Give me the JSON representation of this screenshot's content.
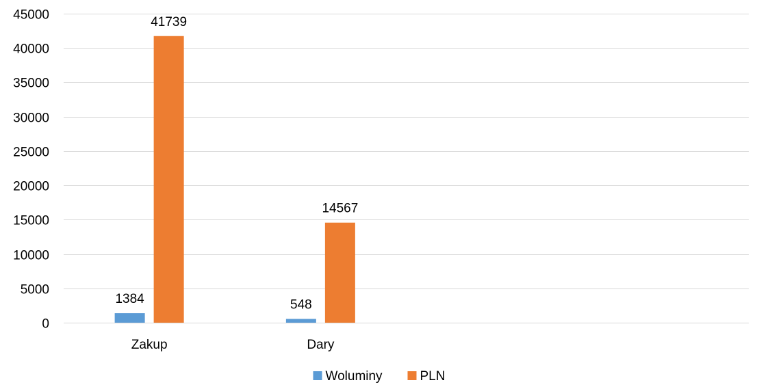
{
  "chart_data": {
    "type": "bar",
    "categories": [
      "Zakup",
      "Dary",
      "",
      ""
    ],
    "series": [
      {
        "name": "Woluminy",
        "values": [
          1384,
          548,
          null,
          null
        ],
        "data_labels": [
          "1384",
          "548",
          "",
          ""
        ],
        "color": "#5b9bd5"
      },
      {
        "name": "PLN",
        "values": [
          41739,
          14567,
          null,
          null
        ],
        "data_labels": [
          "41739",
          "14567",
          "",
          ""
        ],
        "color": "#ed7d31"
      }
    ],
    "title": "",
    "xlabel": "",
    "ylabel": "",
    "ylim": [
      0,
      45000
    ],
    "yticks": [
      0,
      5000,
      10000,
      15000,
      20000,
      25000,
      30000,
      35000,
      40000,
      45000
    ],
    "ytick_labels": [
      "0",
      "5000",
      "10000",
      "15000",
      "20000",
      "25000",
      "30000",
      "35000",
      "40000",
      "45000"
    ],
    "grid": true,
    "legend": {
      "position": "bottom",
      "entries": [
        "Woluminy",
        "PLN"
      ]
    }
  }
}
